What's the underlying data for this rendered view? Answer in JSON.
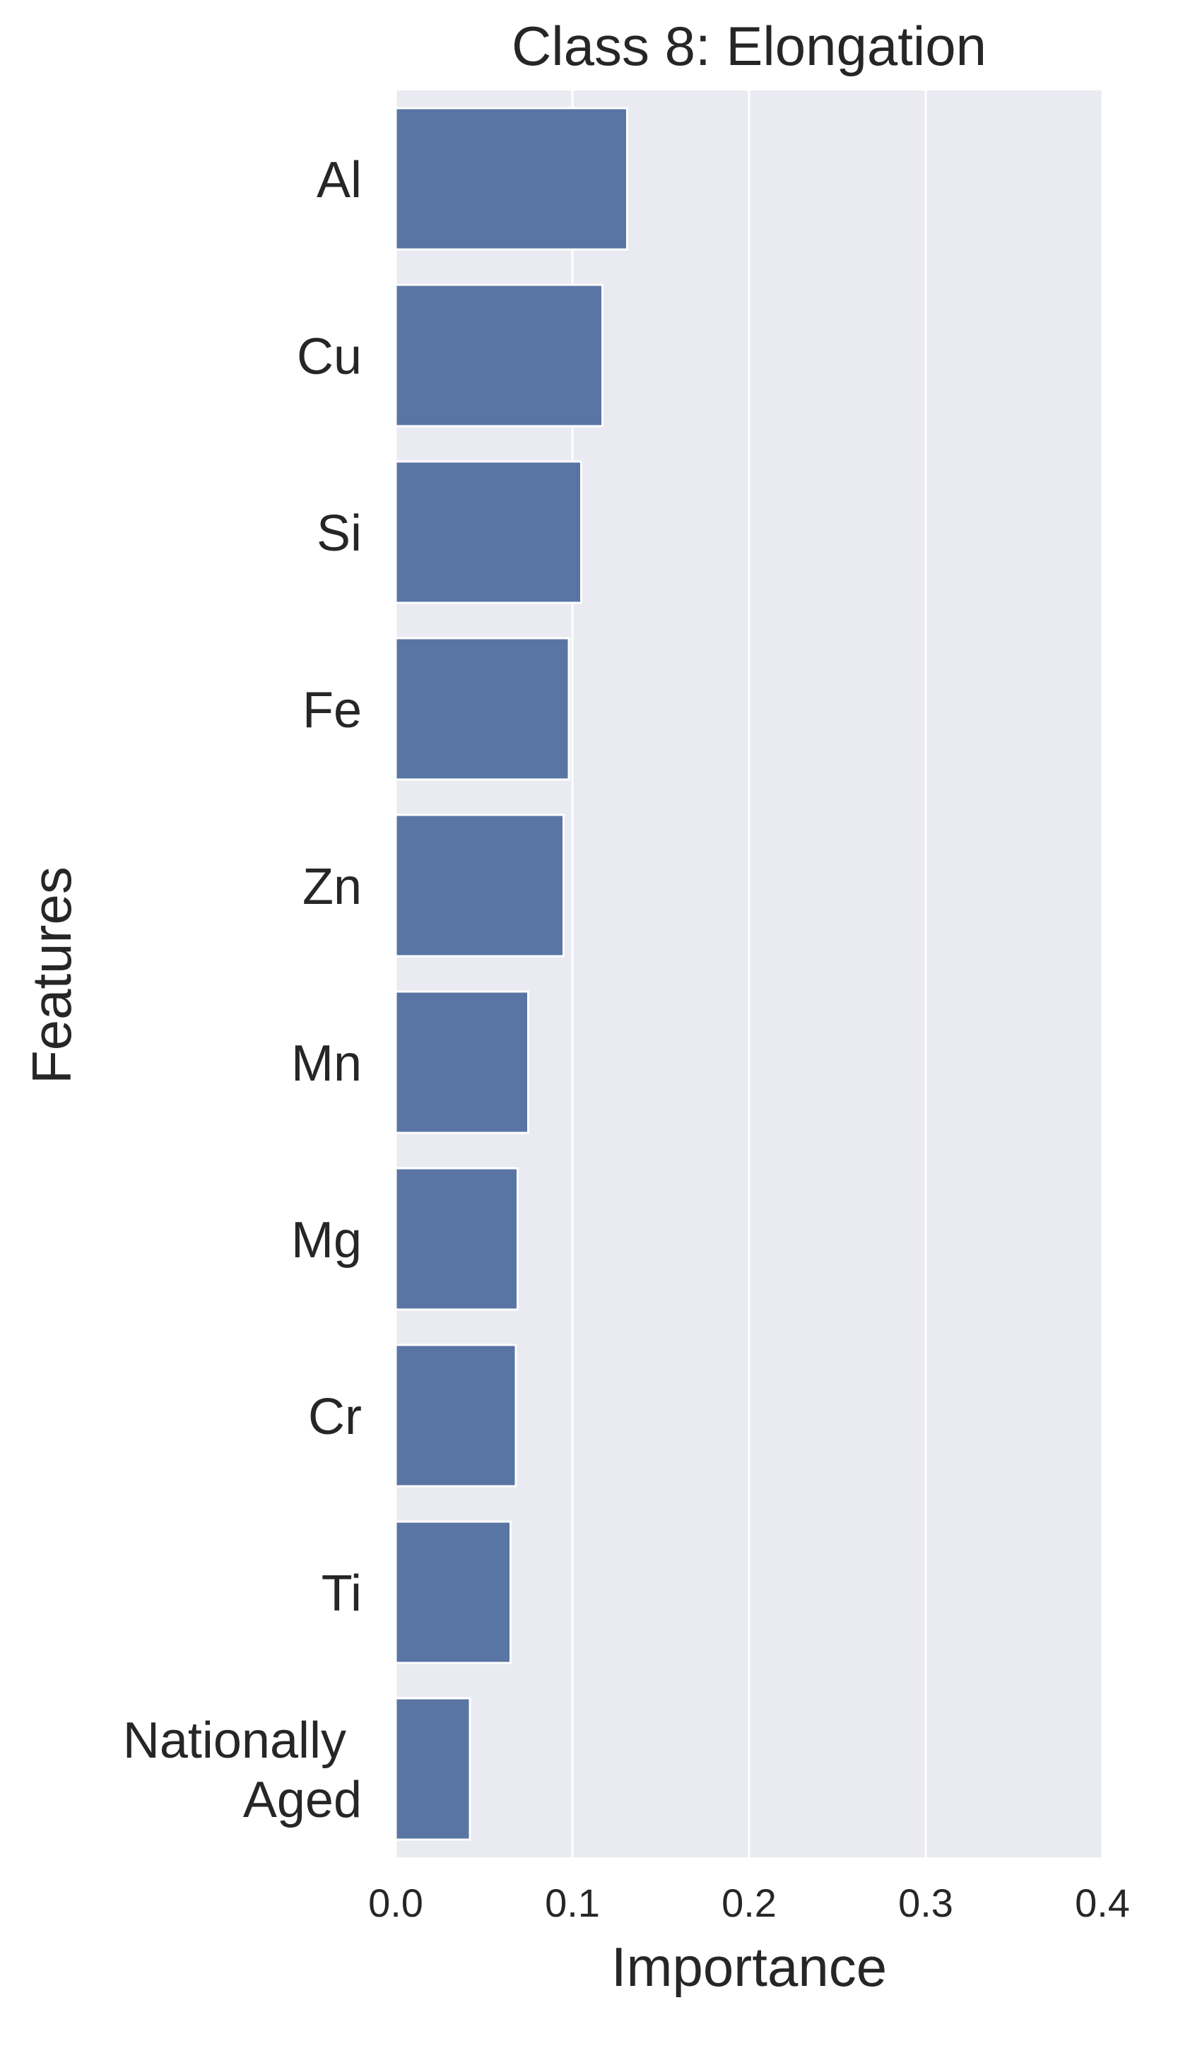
{
  "chart_data": {
    "type": "bar",
    "orientation": "horizontal",
    "title": "Class 8: Elongation",
    "xlabel": "Importance",
    "ylabel": "Features",
    "categories": [
      "Al",
      "Cu",
      "Si",
      "Fe",
      "Zn",
      "Mn",
      "Mg",
      "Cr",
      "Ti",
      "Nationally Aged"
    ],
    "category_lines": [
      [
        "Al"
      ],
      [
        "Cu"
      ],
      [
        "Si"
      ],
      [
        "Fe"
      ],
      [
        "Zn"
      ],
      [
        "Mn"
      ],
      [
        "Mg"
      ],
      [
        "Cr"
      ],
      [
        "Ti"
      ],
      [
        "Nationally",
        "Aged"
      ]
    ],
    "values": [
      0.131,
      0.117,
      0.105,
      0.098,
      0.095,
      0.075,
      0.069,
      0.068,
      0.065,
      0.042
    ],
    "xlim": [
      0,
      0.4
    ],
    "xticks": [
      0.0,
      0.1,
      0.2,
      0.3,
      0.4
    ],
    "xtick_labels": [
      "0.0",
      "0.1",
      "0.2",
      "0.3",
      "0.4"
    ],
    "grid": true,
    "colors": {
      "bar": "#5975a4",
      "plot_background": "#eaeaf2",
      "grid": "#ffffff",
      "text": "#262626"
    }
  }
}
